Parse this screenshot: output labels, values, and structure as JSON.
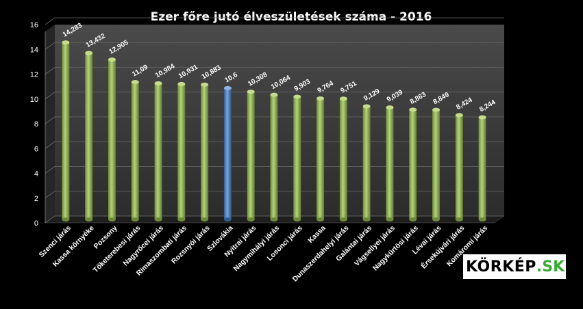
{
  "chart_data": {
    "type": "bar",
    "title": "Ezer főre jutó élveszületések száma - 2016",
    "xlabel": "",
    "ylabel": "",
    "ylim": [
      0,
      16
    ],
    "yticks": [
      "0",
      "2",
      "4",
      "6",
      "8",
      "10",
      "12",
      "14",
      "16"
    ],
    "grid": true,
    "categories": [
      "Szenci járás",
      "Kassa környéke",
      "Pozsony",
      "Tőketerebesi járás",
      "Nagyrőcei járás",
      "Rimaszombati járás",
      "Rozsnyói járás",
      "Szlovákia",
      "Nyitrai járás",
      "Nagymihályi járás",
      "Losonci járás",
      "Kassa",
      "Dunaszerdahelyi járás",
      "Galántai járás",
      "Vágsellyei járás",
      "Nagykürtösi járás",
      "Lévai járás",
      "Érsekújvári járás",
      "Komáromi járás"
    ],
    "values": [
      14.283,
      13.432,
      12.905,
      11.09,
      10.984,
      10.931,
      10.883,
      10.6,
      10.308,
      10.064,
      9.903,
      9.764,
      9.751,
      9.129,
      9.039,
      8.863,
      8.849,
      8.424,
      8.244
    ],
    "data_labels": [
      "14,283",
      "13,432",
      "12,905",
      "11,09",
      "10,984",
      "10,931",
      "10,883",
      "10,6",
      "10,308",
      "10,064",
      "9,903",
      "9,764",
      "9,751",
      "9,129",
      "9,039",
      "8,863",
      "8,849",
      "8,424",
      "8,244"
    ],
    "colors": {
      "default": "#9bbb59",
      "highlight": "#4f81bd",
      "highlight_category": "Szlovákia",
      "background": "#000000",
      "plot_wall": "#3a3a3a",
      "text": "#ffffff"
    }
  },
  "logo": {
    "main": "KÖRKÉP",
    "tld": ".SK",
    "tld_color": "#3aa935"
  }
}
